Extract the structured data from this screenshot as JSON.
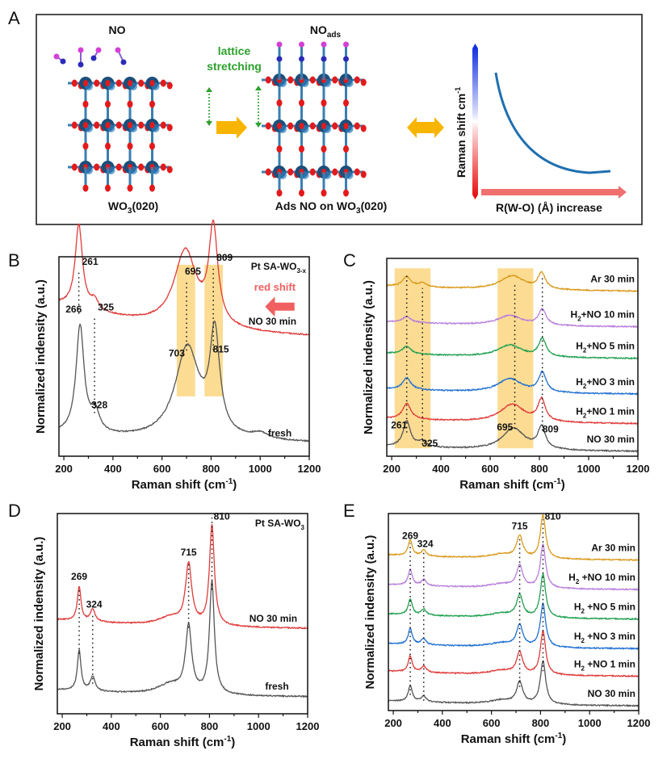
{
  "figure": {
    "panel_labels": [
      "A",
      "B",
      "C",
      "D",
      "E"
    ]
  },
  "panel_a": {
    "left": {
      "molecule_label": "NO",
      "caption": "WO",
      "caption_sub": "3",
      "caption_tail": "(020)"
    },
    "middle": {
      "molecule_label": "NO",
      "molecule_sub": "ads",
      "caption": "Ads NO on WO",
      "caption_sub": "3",
      "caption_tail": "(020)"
    },
    "annotation": {
      "line1": "lattice",
      "line2": "stretching",
      "color": "#2ca02c"
    },
    "schematic": {
      "ylabel": "Raman shift cm",
      "ylabel_sup": "-1",
      "xlabel": "R(W-O) (Å) increase",
      "curve_color": "#1f6fb0",
      "arrow_color": "#f08080",
      "top_color": "#1030e0",
      "bottom_color": "#e81010"
    },
    "colors": {
      "W": "#1b4f7a",
      "O": "#e31a1c",
      "N": "#2b2bb8",
      "O_ads": "#d43fd4",
      "arrow": "#f7b500"
    }
  },
  "chart_data": [
    {
      "panel": "B",
      "type": "line",
      "title": "Pt SA-WO",
      "title_sub": "3-x",
      "xlabel": "Raman shift (cm",
      "xlabel_sup": "-1",
      "xlabel_tail": ")",
      "ylabel": "Normalized indensity (a.u.)",
      "xlim": [
        180,
        1200
      ],
      "ylim": [
        0,
        1
      ],
      "xticks": [
        200,
        400,
        600,
        800,
        1000,
        1200
      ],
      "highlight_bands": [
        [
          660,
          735
        ],
        [
          773,
          848
        ]
      ],
      "highlight_band_yrange": [
        0.3,
        0.96
      ],
      "annotation": {
        "text": "red shift",
        "color": "#f06060",
        "arrow": "left"
      },
      "series": [
        {
          "name": "NO 30 min",
          "color": "#e03a3a",
          "offset": 0.58,
          "baseline": 0.18,
          "peaks": [
            [
              261,
              0.42,
              18
            ],
            [
              325,
              0.05,
              20
            ],
            [
              695,
              0.38,
              55
            ],
            [
              809,
              0.48,
              22
            ]
          ],
          "label_pos": [
            1050,
            0.66
          ]
        },
        {
          "name": "fresh",
          "color": "#555555",
          "offset": 0.06,
          "baseline": 0.05,
          "peaks": [
            [
              266,
              0.54,
              20
            ],
            [
              328,
              0.1,
              22
            ],
            [
              703,
              0.46,
              60
            ],
            [
              815,
              0.5,
              24
            ],
            [
              1000,
              0.03,
              40
            ]
          ],
          "label_pos": [
            1080,
            0.1
          ]
        }
      ],
      "peak_labels": [
        {
          "text": "261",
          "x": 261,
          "y": 0.96,
          "dotted_to": 0.7
        },
        {
          "text": "325",
          "x": 325,
          "y": 0.73,
          "dotted_to": 0.2
        },
        {
          "text": "266",
          "x": 240,
          "y": 0.72
        },
        {
          "text": "328",
          "x": 345,
          "y": 0.24
        },
        {
          "text": "695",
          "x": 680,
          "y": 0.91,
          "dotted_to": 0.52,
          "dotted_x": 700
        },
        {
          "text": "809",
          "x": 809,
          "y": 0.98,
          "dotted_to": 0.53
        },
        {
          "text": "703",
          "x": 660,
          "y": 0.5
        },
        {
          "text": "815",
          "x": 840,
          "y": 0.52
        }
      ]
    },
    {
      "panel": "C",
      "type": "line",
      "xlabel": "Raman shift (cm",
      "xlabel_sup": "-1",
      "xlabel_tail": ")",
      "ylabel": "Normalized indensity (a.u.)",
      "xlim": [
        180,
        1200
      ],
      "ylim": [
        0,
        1
      ],
      "xticks": [
        200,
        400,
        600,
        800,
        1000,
        1200
      ],
      "highlight_bands": [
        [
          212,
          358
        ],
        [
          630,
          775
        ]
      ],
      "highlight_band_yrange": [
        0.04,
        0.95
      ],
      "series": [
        {
          "name": "Ar",
          "name_tail": "30 min",
          "color": "#d99a1c",
          "offset": 0.83,
          "peaks": [
            [
              261,
              0.05,
              20
            ],
            [
              325,
              0.02,
              20
            ],
            [
              690,
              0.07,
              60
            ],
            [
              809,
              0.08,
              18
            ]
          ]
        },
        {
          "name": "H2+NO",
          "name_sub": "2",
          "name_tail": "10 min",
          "color": "#b77ddb",
          "offset": 0.65,
          "peaks": [
            [
              261,
              0.03,
              20
            ],
            [
              680,
              0.05,
              60
            ],
            [
              812,
              0.08,
              18
            ]
          ]
        },
        {
          "name": "H2+NO",
          "name_sub": "2",
          "name_tail": "5 min",
          "color": "#20a050",
          "offset": 0.49,
          "peaks": [
            [
              261,
              0.04,
              20
            ],
            [
              680,
              0.06,
              60
            ],
            [
              812,
              0.09,
              18
            ]
          ]
        },
        {
          "name": "H2+NO",
          "name_sub": "2",
          "name_tail": "3 min",
          "color": "#1f6fd0",
          "offset": 0.31,
          "peaks": [
            [
              261,
              0.06,
              20
            ],
            [
              680,
              0.07,
              60
            ],
            [
              812,
              0.1,
              18
            ]
          ]
        },
        {
          "name": "H2+NO",
          "name_sub": "2",
          "name_tail": "1 min",
          "color": "#e03a3a",
          "offset": 0.16,
          "peaks": [
            [
              261,
              0.08,
              20
            ],
            [
              690,
              0.09,
              60
            ],
            [
              809,
              0.11,
              18
            ]
          ]
        },
        {
          "name": "NO",
          "name_tail": "30 min",
          "color": "#555555",
          "offset": 0.02,
          "peaks": [
            [
              261,
              0.13,
              18
            ],
            [
              325,
              0.03,
              20
            ],
            [
              695,
              0.11,
              55
            ],
            [
              809,
              0.11,
              18
            ]
          ]
        }
      ],
      "peak_labels": [
        {
          "text": "261",
          "x": 230,
          "y": 0.14
        },
        {
          "text": "325",
          "x": 355,
          "y": 0.05
        },
        {
          "text": "695",
          "x": 660,
          "y": 0.13
        },
        {
          "text": "809",
          "x": 845,
          "y": 0.12
        }
      ],
      "dotted_lines": [
        [
          261,
          0.12,
          0.92
        ],
        [
          325,
          0.06,
          0.85
        ],
        [
          700,
          0.14,
          0.87
        ],
        [
          812,
          0.13,
          0.91
        ]
      ]
    },
    {
      "panel": "D",
      "type": "line",
      "title": "Pt SA-WO",
      "title_sub": "3",
      "xlabel": "Raman shift (cm",
      "xlabel_sup": "-1",
      "xlabel_tail": ")",
      "ylabel": "Normalized indensity (a.u.)",
      "xlim": [
        180,
        1200
      ],
      "ylim": [
        0,
        1
      ],
      "xticks": [
        200,
        400,
        600,
        800,
        1000,
        1200
      ],
      "series": [
        {
          "name": "NO 30 min",
          "color": "#e03a3a",
          "offset": 0.42,
          "baseline": 0.05,
          "peaks": [
            [
              269,
              0.17,
              9
            ],
            [
              324,
              0.06,
              12
            ],
            [
              640,
              0.04,
              60
            ],
            [
              715,
              0.3,
              15
            ],
            [
              810,
              0.5,
              12
            ]
          ],
          "label_pos": [
            1060,
            0.46
          ]
        },
        {
          "name": "fresh",
          "color": "#555555",
          "offset": 0.08,
          "baseline": 0.04,
          "peaks": [
            [
              269,
              0.2,
              9
            ],
            [
              324,
              0.07,
              12
            ],
            [
              640,
              0.05,
              60
            ],
            [
              715,
              0.33,
              15
            ],
            [
              810,
              0.56,
              12
            ]
          ],
          "label_pos": [
            1075,
            0.12
          ]
        }
      ],
      "peak_labels": [
        {
          "text": "269",
          "x": 269,
          "y": 0.67
        },
        {
          "text": "324",
          "x": 330,
          "y": 0.53
        },
        {
          "text": "715",
          "x": 715,
          "y": 0.79
        },
        {
          "text": "810",
          "x": 850,
          "y": 0.97
        }
      ],
      "dotted_lines": [
        [
          269,
          0.3,
          0.63
        ],
        [
          324,
          0.15,
          0.49
        ],
        [
          715,
          0.43,
          0.75
        ],
        [
          810,
          0.62,
          0.98
        ]
      ]
    },
    {
      "panel": "E",
      "type": "line",
      "xlabel": "Raman shift (cm",
      "xlabel_sup": "-1",
      "xlabel_tail": ")",
      "ylabel": "Normalized indensity (a.u.)",
      "xlim": [
        180,
        1200
      ],
      "ylim": [
        0,
        1
      ],
      "xticks": [
        200,
        400,
        600,
        800,
        1000,
        1200
      ],
      "series": [
        {
          "name": "Ar",
          "name_tail": "30 min",
          "color": "#d99a1c",
          "offset": 0.76,
          "peaks": [
            [
              269,
              0.08,
              10
            ],
            [
              324,
              0.03,
              12
            ],
            [
              640,
              0.02,
              60
            ],
            [
              715,
              0.11,
              15
            ],
            [
              810,
              0.22,
              13
            ]
          ]
        },
        {
          "name": "H2 +NO",
          "name_sub": "2",
          "name_tail": "10 min",
          "color": "#b77ddb",
          "offset": 0.61,
          "peaks": [
            [
              269,
              0.08,
              10
            ],
            [
              324,
              0.03,
              12
            ],
            [
              640,
              0.02,
              60
            ],
            [
              715,
              0.11,
              15
            ],
            [
              810,
              0.22,
              13
            ]
          ]
        },
        {
          "name": "H2 +NO",
          "name_sub": "2",
          "name_tail": "5 min",
          "color": "#20a050",
          "offset": 0.46,
          "peaks": [
            [
              269,
              0.08,
              10
            ],
            [
              324,
              0.03,
              12
            ],
            [
              640,
              0.02,
              60
            ],
            [
              715,
              0.11,
              15
            ],
            [
              810,
              0.22,
              13
            ]
          ]
        },
        {
          "name": "H2 +NO",
          "name_sub": "2",
          "name_tail": "3 min",
          "color": "#1f6fd0",
          "offset": 0.31,
          "peaks": [
            [
              269,
              0.08,
              10
            ],
            [
              324,
              0.03,
              12
            ],
            [
              640,
              0.02,
              60
            ],
            [
              715,
              0.11,
              15
            ],
            [
              810,
              0.22,
              13
            ]
          ]
        },
        {
          "name": "H2 +NO",
          "name_sub": "2",
          "name_tail": "1 min",
          "color": "#e03a3a",
          "offset": 0.17,
          "peaks": [
            [
              269,
              0.08,
              10
            ],
            [
              324,
              0.03,
              12
            ],
            [
              640,
              0.02,
              60
            ],
            [
              715,
              0.11,
              15
            ],
            [
              810,
              0.22,
              13
            ]
          ]
        },
        {
          "name": "NO",
          "name_tail": "30 min",
          "color": "#555555",
          "offset": 0.02,
          "peaks": [
            [
              269,
              0.08,
              10
            ],
            [
              324,
              0.03,
              12
            ],
            [
              640,
              0.02,
              60
            ],
            [
              715,
              0.11,
              15
            ],
            [
              810,
              0.22,
              13
            ]
          ]
        }
      ],
      "peak_labels": [
        {
          "text": "269",
          "x": 269,
          "y": 0.87
        },
        {
          "text": "324",
          "x": 330,
          "y": 0.83
        },
        {
          "text": "715",
          "x": 715,
          "y": 0.92
        },
        {
          "text": "810",
          "x": 850,
          "y": 0.97
        }
      ],
      "dotted_lines": [
        [
          269,
          0.08,
          0.85
        ],
        [
          324,
          0.05,
          0.81
        ],
        [
          715,
          0.12,
          0.88
        ],
        [
          810,
          0.2,
          0.97
        ]
      ]
    }
  ]
}
